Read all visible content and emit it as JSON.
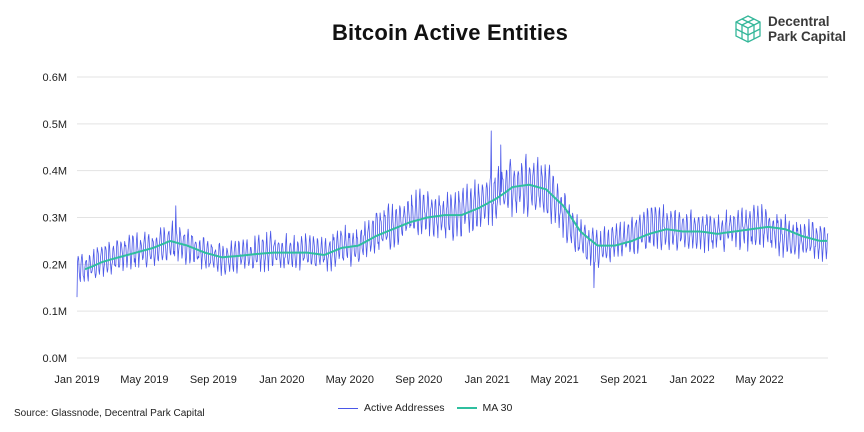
{
  "header": {
    "title": "Bitcoin Active Entities",
    "brand_line1": "Decentral",
    "brand_line2": "Park Capital",
    "brand_icon": "cube-grid-icon"
  },
  "footer": {
    "source": "Source: Glassnode, Decentral Park Capital"
  },
  "colors": {
    "active": "#4a57e8",
    "ma": "#2fbf9f",
    "grid": "#e3e3e3",
    "logo": "#35b79a"
  },
  "chart_data": {
    "type": "line",
    "title": "Bitcoin Active Entities",
    "xlabel": "",
    "ylabel": "",
    "ylim": [
      0,
      0.6
    ],
    "y_unit": "M",
    "yticks": [
      "0.0M",
      "0.1M",
      "0.2M",
      "0.3M",
      "0.4M",
      "0.5M",
      "0.6M"
    ],
    "xticks": [
      "Jan 2019",
      "May 2019",
      "Sep 2019",
      "Jan 2020",
      "May 2020",
      "Sep 2020",
      "Jan 2021",
      "May 2021",
      "Sep 2021",
      "Jan 2022",
      "May 2022"
    ],
    "x_range": [
      "2019-01-01",
      "2022-08-31"
    ],
    "grid": true,
    "legend_position": "bottom",
    "series": [
      {
        "name": "Active Addresses",
        "frequency": "daily",
        "note": "approximate daily values (in millions); drawn as a daily line with weekly oscillation",
        "monthly_center": [
          0.19,
          0.21,
          0.22,
          0.23,
          0.23,
          0.25,
          0.24,
          0.22,
          0.21,
          0.22,
          0.22,
          0.23,
          0.225,
          0.23,
          0.22,
          0.24,
          0.24,
          0.27,
          0.28,
          0.3,
          0.31,
          0.3,
          0.31,
          0.33,
          0.35,
          0.37,
          0.37,
          0.36,
          0.31,
          0.25,
          0.23,
          0.25,
          0.26,
          0.28,
          0.28,
          0.27,
          0.27,
          0.27,
          0.28,
          0.28,
          0.28,
          0.26,
          0.25,
          0.25
        ],
        "spikes": [
          {
            "date": "2019-01-01",
            "value": 0.13
          },
          {
            "date": "2019-06-26",
            "value": 0.325
          },
          {
            "date": "2021-01-08",
            "value": 0.485
          },
          {
            "date": "2021-01-25",
            "value": 0.455
          },
          {
            "date": "2021-07-10",
            "value": 0.15
          }
        ]
      },
      {
        "name": "MA 30",
        "values_monthly": [
          0.19,
          0.205,
          0.215,
          0.225,
          0.235,
          0.25,
          0.24,
          0.225,
          0.215,
          0.218,
          0.222,
          0.225,
          0.225,
          0.225,
          0.22,
          0.235,
          0.24,
          0.26,
          0.275,
          0.29,
          0.3,
          0.305,
          0.305,
          0.32,
          0.34,
          0.365,
          0.37,
          0.36,
          0.325,
          0.27,
          0.24,
          0.24,
          0.25,
          0.265,
          0.275,
          0.27,
          0.27,
          0.265,
          0.27,
          0.275,
          0.28,
          0.275,
          0.26,
          0.25
        ]
      }
    ]
  }
}
